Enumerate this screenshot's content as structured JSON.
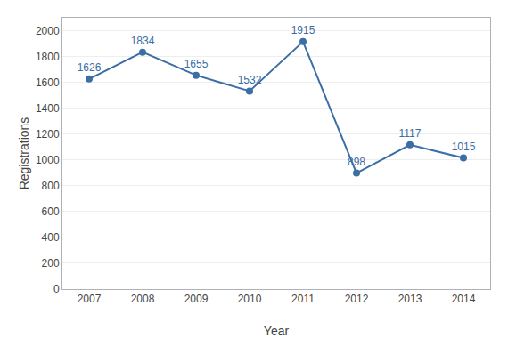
{
  "chart_data": {
    "type": "line",
    "x": [
      2007,
      2008,
      2009,
      2010,
      2011,
      2012,
      2013,
      2014
    ],
    "values": [
      1626,
      1834,
      1655,
      1532,
      1915,
      898,
      1117,
      1015
    ],
    "color": "#3A6EA5",
    "marker": "circle",
    "xlabel": "Year",
    "ylabel": "Registrations",
    "xlim": [
      2006.5,
      2014.5
    ],
    "xticks": [
      2007,
      2008,
      2009,
      2010,
      2011,
      2012,
      2013,
      2014
    ],
    "ylim": [
      0,
      2100
    ],
    "yticks": [
      0,
      200,
      400,
      600,
      800,
      1000,
      1200,
      1400,
      1600,
      1800,
      2000
    ],
    "grid": "y",
    "data_labels": true
  }
}
